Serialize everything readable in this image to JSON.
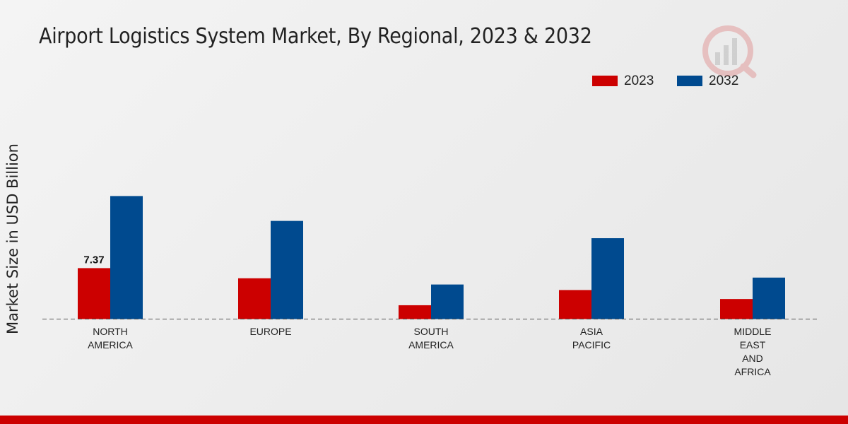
{
  "chart_data": {
    "type": "bar",
    "title": "Airport Logistics System Market, By Regional, 2023 & 2032",
    "xlabel": "",
    "ylabel": "Market Size in USD Billion",
    "ylim": [
      0,
      25
    ],
    "categories": [
      [
        "NORTH",
        "AMERICA"
      ],
      [
        "EUROPE"
      ],
      [
        "SOUTH",
        "AMERICA"
      ],
      [
        "ASIA",
        "PACIFIC"
      ],
      [
        "MIDDLE",
        "EAST",
        "AND",
        "AFRICA"
      ]
    ],
    "series": [
      {
        "name": "2023",
        "color": "#cc0000",
        "values": [
          7.37,
          5.9,
          2.0,
          4.2,
          2.9
        ]
      },
      {
        "name": "2032",
        "color": "#004a8f",
        "values": [
          17.8,
          14.2,
          5.0,
          11.7,
          6.0
        ]
      }
    ],
    "data_labels": [
      {
        "series": 0,
        "category": 0,
        "text": "7.37"
      }
    ],
    "legend_position": "top-right",
    "grid": false,
    "baseline": "dashed"
  }
}
